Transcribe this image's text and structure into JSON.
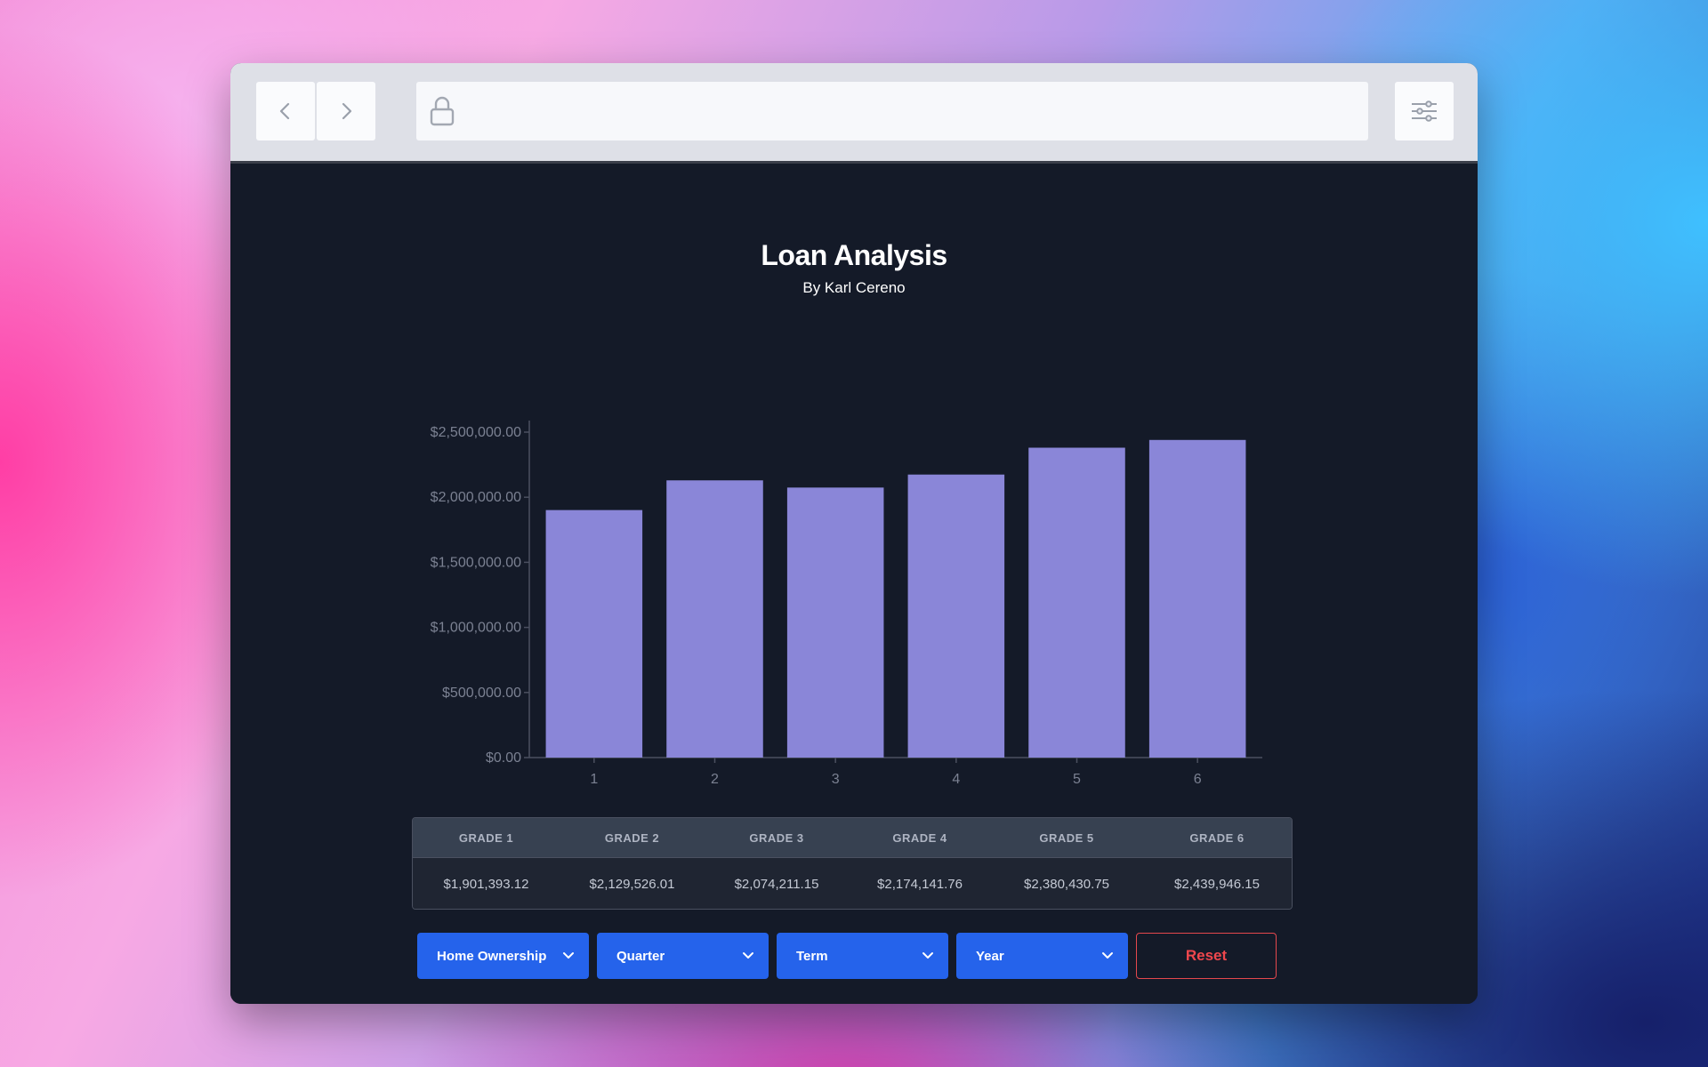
{
  "page": {
    "title": "Loan Analysis",
    "subtitle": "By Karl Cereno"
  },
  "browser": {
    "back_icon": "chevron-left-icon",
    "forward_icon": "chevron-right-icon",
    "lock_icon": "lock-icon",
    "menu_icon": "sliders-icon"
  },
  "chart_data": {
    "type": "bar",
    "categories": [
      "1",
      "2",
      "3",
      "4",
      "5",
      "6"
    ],
    "values": [
      1901393.12,
      2129526.01,
      2074211.15,
      2174141.76,
      2380430.75,
      2439946.15
    ],
    "ylim": [
      0,
      2500000
    ],
    "y_ticks": [
      "$0.00",
      "$500,000.00",
      "$1,000,000.00",
      "$1,500,000.00",
      "$2,000,000.00",
      "$2,500,000.00"
    ],
    "y_tick_values": [
      0,
      500000,
      1000000,
      1500000,
      2000000,
      2500000
    ],
    "title": "",
    "xlabel": "",
    "ylabel": "",
    "grid": false,
    "bar_color": "#8a86d8"
  },
  "table": {
    "headers": [
      "GRADE 1",
      "GRADE 2",
      "GRADE 3",
      "GRADE 4",
      "GRADE 5",
      "GRADE 6"
    ],
    "values": [
      "$1,901,393.12",
      "$2,129,526.01",
      "$2,074,211.15",
      "$2,174,141.76",
      "$2,380,430.75",
      "$2,439,946.15"
    ]
  },
  "controls": {
    "dropdowns": [
      "Home Ownership",
      "Quarter",
      "Term",
      "Year"
    ],
    "reset_label": "Reset"
  },
  "colors": {
    "accent": "#2563eb",
    "danger": "#e5484d",
    "background": "#141a28"
  }
}
